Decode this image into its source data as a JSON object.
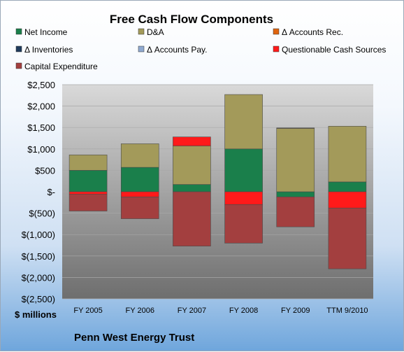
{
  "chart_data": {
    "type": "bar",
    "stacked": true,
    "title": "Free Cash Flow Components",
    "ylabel": "$ millions",
    "footer": "Penn West Energy Trust",
    "categories": [
      "FY 2005",
      "FY 2006",
      "FY 2007",
      "FY 2008",
      "FY 2009",
      "TTM 9/2010"
    ],
    "ylim": [
      -2500,
      2500
    ],
    "ytick_values": [
      2500,
      2000,
      1500,
      1000,
      500,
      0,
      -500,
      -1000,
      -1500,
      -2000,
      -2500
    ],
    "ytick_labels": [
      "$2,500",
      "$2,000",
      "$1,500",
      "$1,000",
      "$500",
      "$-",
      "$(500)",
      "$(1,000)",
      "$(1,500)",
      "$(2,000)",
      "$(2,500)"
    ],
    "legend_position": "top",
    "series": [
      {
        "name": "Net Income",
        "color": "#1a7f4b",
        "values": [
          500,
          570,
          170,
          1000,
          -120,
          230
        ]
      },
      {
        "name": "D&A",
        "color": "#a39a5a",
        "values": [
          360,
          550,
          900,
          1270,
          1480,
          1300
        ]
      },
      {
        "name": "Δ Accounts Rec.",
        "color": "#e0640e",
        "values": [
          0,
          0,
          0,
          0,
          0,
          0
        ]
      },
      {
        "name": "Δ Inventories",
        "color": "#1f3b5c",
        "values": [
          0,
          0,
          0,
          0,
          0,
          0
        ]
      },
      {
        "name": "Δ Accounts Pay.",
        "color": "#8fa9d0",
        "values": [
          0,
          0,
          0,
          0,
          0,
          0
        ]
      },
      {
        "name": "Questionable Cash Sources",
        "color": "#ff1a1a",
        "values": [
          -60,
          -120,
          210,
          -300,
          10,
          -380
        ]
      },
      {
        "name": "Capital Expenditure",
        "color": "#a33f3f",
        "values": [
          -390,
          -510,
          -1270,
          -900,
          -700,
          -1420
        ]
      }
    ]
  }
}
